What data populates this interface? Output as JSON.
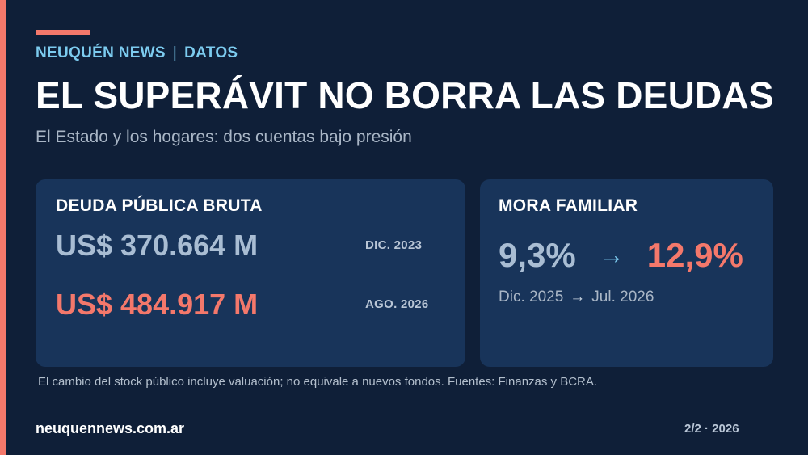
{
  "header": {
    "brand": "NEUQUÉN NEWS",
    "separator": "|",
    "section": "DATOS",
    "headline": "EL SUPERÁVIT NO BORRA LAS DEUDAS",
    "subtitle": "El Estado y los hogares: dos cuentas bajo presión"
  },
  "public_debt": {
    "title": "DEUDA PÚBLICA BRUTA",
    "old_value": "US$ 370.664 M",
    "old_date": "DIC. 2023",
    "new_value": "US$ 484.917 M",
    "new_date": "AGO. 2026"
  },
  "household_arrears": {
    "title": "MORA FAMILIAR",
    "from_value": "9,3%",
    "arrow": "→",
    "to_value": "12,9%",
    "from_period": "Dic. 2025",
    "to_period": "Jul. 2026"
  },
  "footnote": "El cambio del stock público incluye valuación; no equivale a nuevos fondos. Fuentes: Finanzas y BCRA.",
  "footer": {
    "site": "neuquennews.com.ar",
    "pager": "2/2 · 2026"
  },
  "colors": {
    "background": "#0f1f38",
    "card": "#18345a",
    "accent": "#f4786b",
    "kicker": "#7ccbef"
  }
}
